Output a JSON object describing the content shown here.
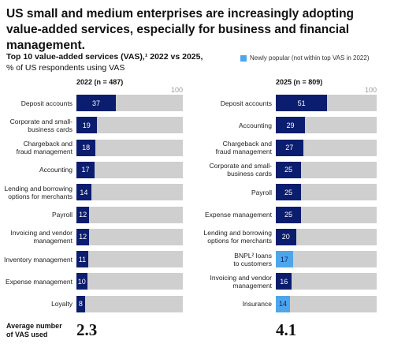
{
  "header": {
    "title": "US small and medium enterprises are increasingly adopting value-added services, especially for business and financial management.",
    "subtitle": "Top 10 value-added services (VAS),¹ 2022 vs 2025,",
    "subtitle2": "% of US respondents using VAS"
  },
  "legend": {
    "label": "Newly popular (not within top VAS in 2022)",
    "color": "#4ea6ea"
  },
  "chart_data": [
    {
      "type": "bar",
      "orientation": "horizontal",
      "title": "2022 (n = 487)",
      "categories": [
        "Deposit accounts",
        "Corporate and small-\nbusiness cards",
        "Chargeback and\nfraud management",
        "Accounting",
        "Lending and borrowing\noptions for merchants",
        "Payroll",
        "Invoicing and vendor\nmanagement",
        "Inventory management",
        "Expense management",
        "Loyalty"
      ],
      "values": [
        37,
        19,
        18,
        17,
        14,
        12,
        12,
        11,
        10,
        8
      ],
      "colors": [
        "#0b1d6e",
        "#0b1d6e",
        "#0b1d6e",
        "#0b1d6e",
        "#0b1d6e",
        "#0b1d6e",
        "#0b1d6e",
        "#0b1d6e",
        "#0b1d6e",
        "#0b1d6e"
      ],
      "background": "#cfcfcf",
      "xlim": [
        0,
        100
      ],
      "xticks": [
        100
      ]
    },
    {
      "type": "bar",
      "orientation": "horizontal",
      "title": "2025 (n = 809)",
      "categories": [
        "Deposit accounts",
        "Accounting",
        "Chargeback and\nfraud management",
        "Corporate and small-\nbusiness cards",
        "Payroll",
        "Expense management",
        "Lending and borrowing\noptions for merchants",
        "BNPL² loans\nto customers",
        "Invoicing and vendor\nmanagement",
        "Insurance"
      ],
      "values": [
        51,
        29,
        27,
        25,
        25,
        25,
        20,
        17,
        16,
        14
      ],
      "colors": [
        "#0b1d6e",
        "#0b1d6e",
        "#0b1d6e",
        "#0b1d6e",
        "#0b1d6e",
        "#0b1d6e",
        "#0b1d6e",
        "#4ea6ea",
        "#0b1d6e",
        "#4ea6ea"
      ],
      "background": "#cfcfcf",
      "xlim": [
        0,
        100
      ],
      "xticks": [
        100
      ]
    }
  ],
  "footer": {
    "label": "Average number\nof VAS used",
    "values": [
      2.3,
      4.1
    ]
  }
}
